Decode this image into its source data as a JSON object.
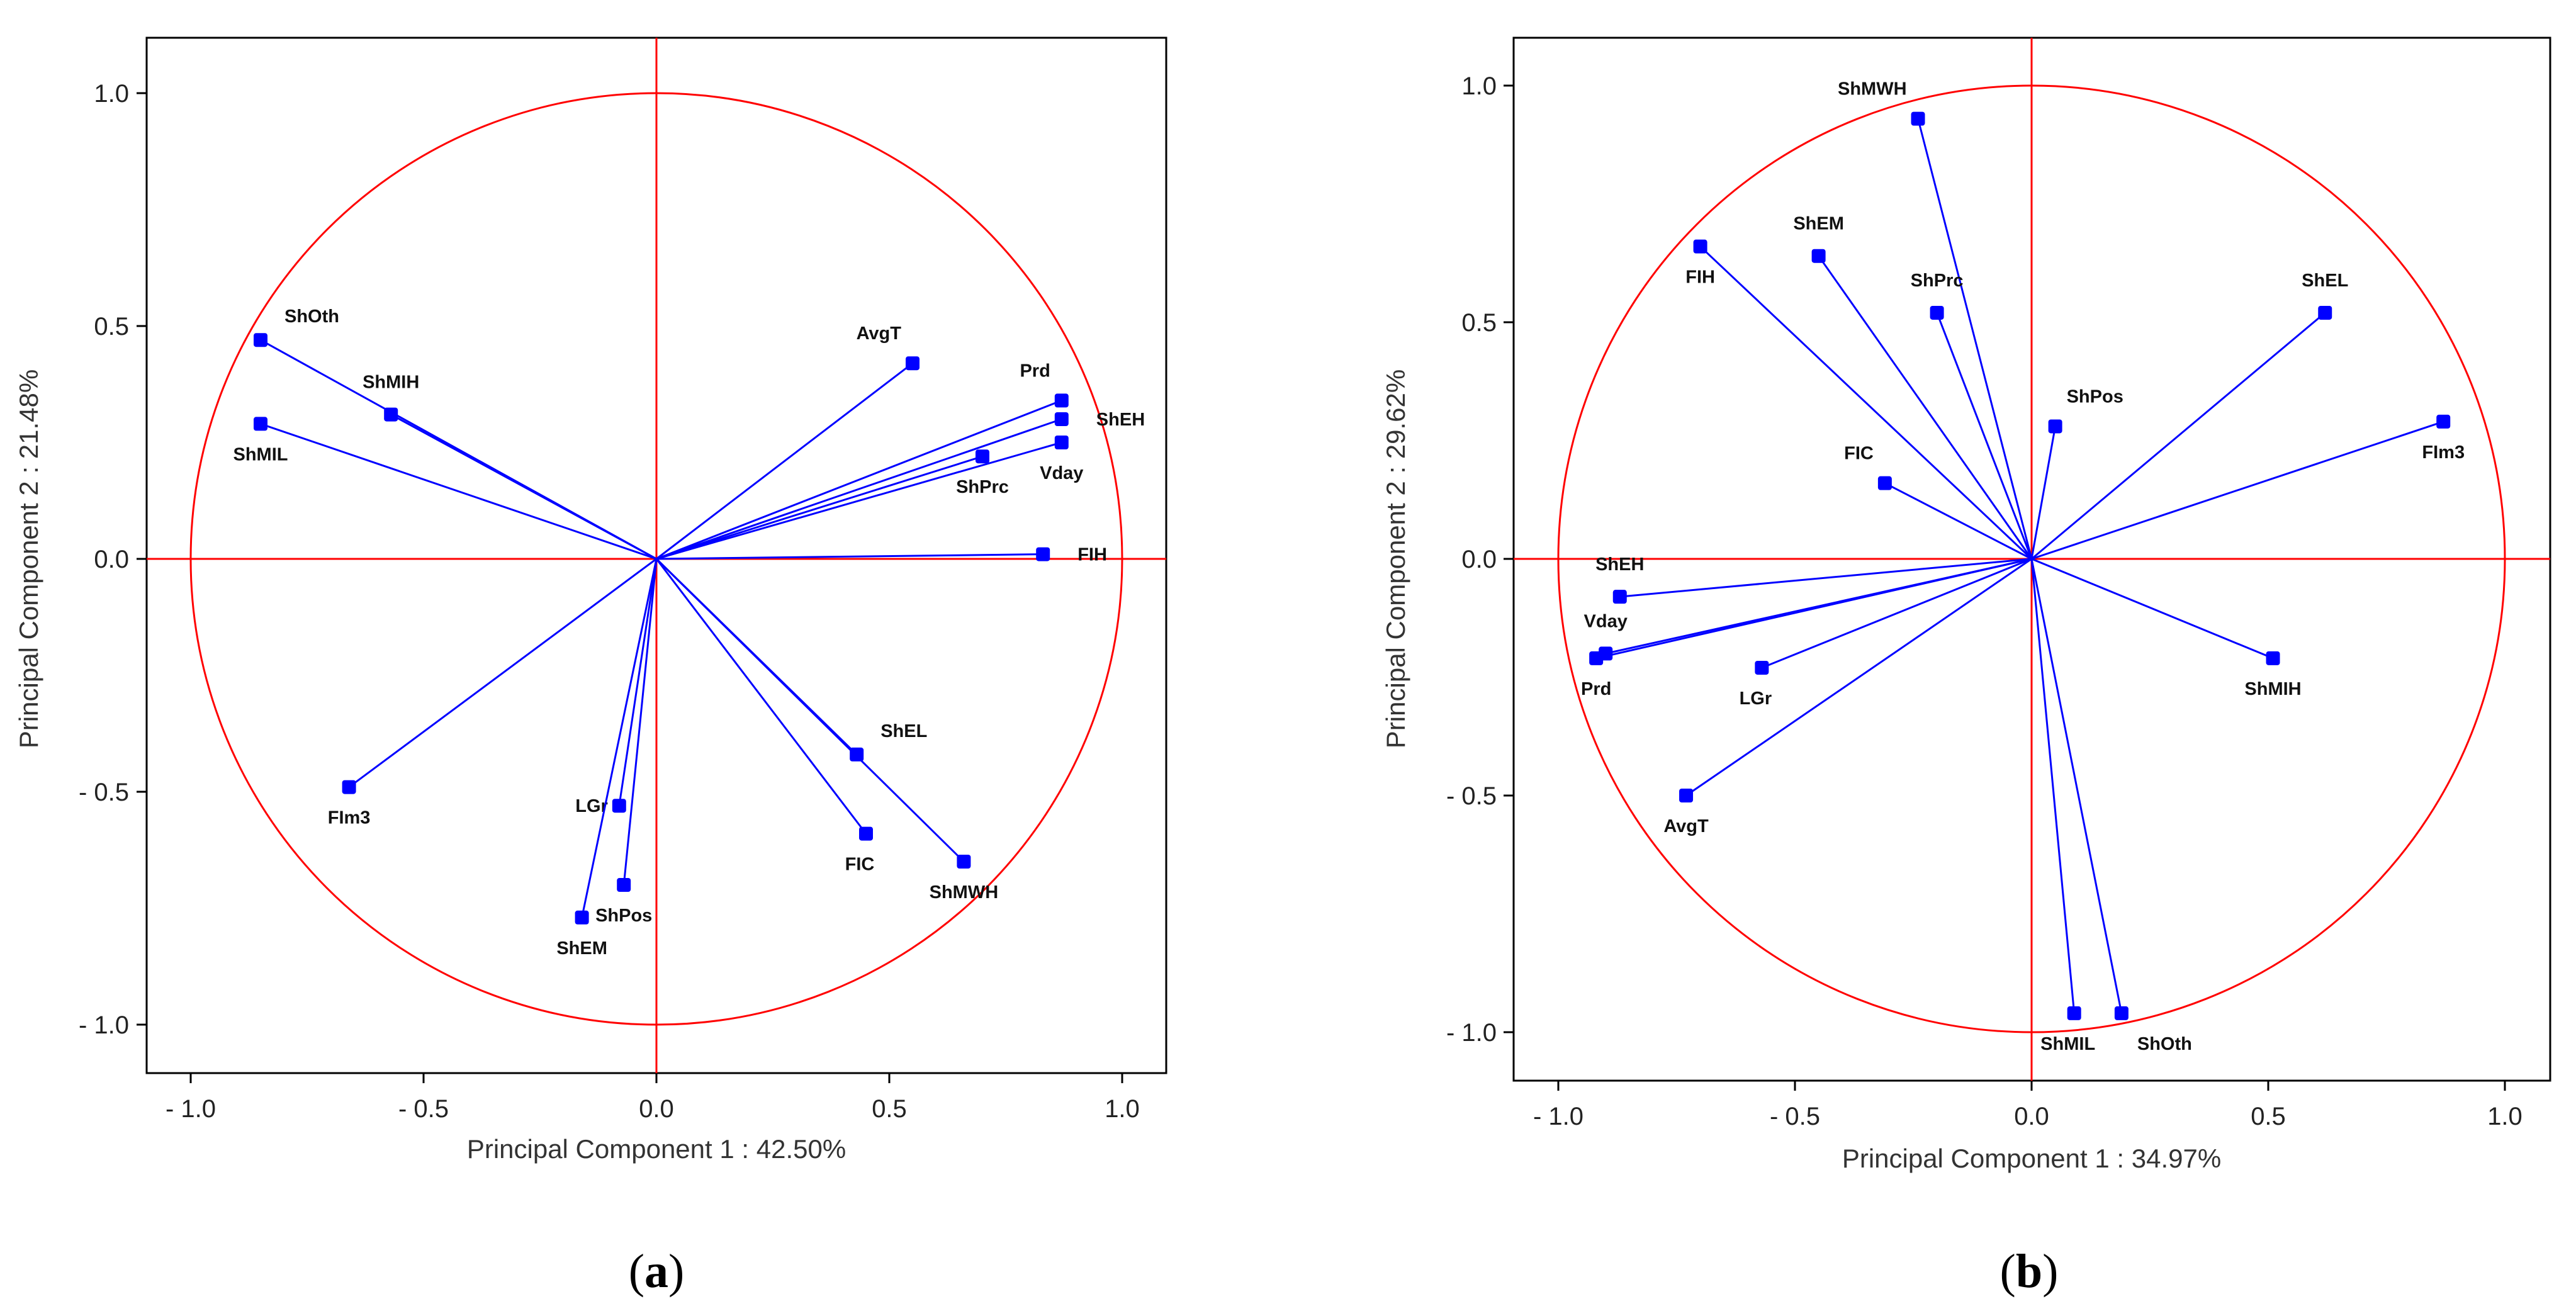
{
  "colors": {
    "frame": "#000000",
    "circle": "#ff0000",
    "vector": "#0000ff",
    "marker": "#0000ff",
    "text": "#111111"
  },
  "chart_data": [
    {
      "type": "scatter",
      "subtype": "pca-correlation-circle",
      "panel": "a",
      "caption": {
        "open": "(",
        "letter": "a",
        "close": ")"
      },
      "xlabel": "Principal Component 1 : 42.50%",
      "ylabel": "Principal Component 2 : 21.48%",
      "xlim": [
        -1.1,
        1.1
      ],
      "ylim": [
        -1.1,
        1.1
      ],
      "xticks": [
        -1.0,
        -0.5,
        0.0,
        0.5,
        1.0
      ],
      "xtick_labels": [
        "- 1.0",
        "- 0.5",
        "0.0",
        "0.5",
        "1.0"
      ],
      "yticks": [
        1.0,
        0.5,
        0.0,
        -0.5,
        -1.0
      ],
      "ytick_labels": [
        "1.0",
        "0.5",
        "0.0",
        "- 0.5",
        "- 1.0"
      ],
      "circle_radius": 1.0,
      "grid": false,
      "points": [
        {
          "name": "ShOth",
          "x": -0.85,
          "y": 0.47,
          "label_pos": "upper-right"
        },
        {
          "name": "ShMIH",
          "x": -0.57,
          "y": 0.31,
          "label_pos": "above"
        },
        {
          "name": "ShMIL",
          "x": -0.85,
          "y": 0.29,
          "label_pos": "below"
        },
        {
          "name": "AvgT",
          "x": 0.55,
          "y": 0.42,
          "label_pos": "above-left"
        },
        {
          "name": "Prd",
          "x": 0.87,
          "y": 0.34,
          "label_pos": "above-left"
        },
        {
          "name": "ShEH",
          "x": 0.87,
          "y": 0.3,
          "label_pos": "right"
        },
        {
          "name": "Vday",
          "x": 0.87,
          "y": 0.25,
          "label_pos": "below"
        },
        {
          "name": "ShPrc",
          "x": 0.7,
          "y": 0.22,
          "label_pos": "below"
        },
        {
          "name": "FIH",
          "x": 0.83,
          "y": 0.01,
          "label_pos": "right"
        },
        {
          "name": "ShEL",
          "x": 0.43,
          "y": -0.42,
          "label_pos": "upper-right"
        },
        {
          "name": "FIC",
          "x": 0.45,
          "y": -0.59,
          "label_pos": "below-left"
        },
        {
          "name": "ShMWH",
          "x": 0.66,
          "y": -0.65,
          "label_pos": "below"
        },
        {
          "name": "FIm3",
          "x": -0.66,
          "y": -0.49,
          "label_pos": "below"
        },
        {
          "name": "LGr",
          "x": -0.08,
          "y": -0.53,
          "label_pos": "left"
        },
        {
          "name": "ShPos",
          "x": -0.07,
          "y": -0.7,
          "label_pos": "below"
        },
        {
          "name": "ShEM",
          "x": -0.16,
          "y": -0.77,
          "label_pos": "below"
        }
      ]
    },
    {
      "type": "scatter",
      "subtype": "pca-correlation-circle",
      "panel": "b",
      "caption": {
        "open": "(",
        "letter": "b",
        "close": ")"
      },
      "xlabel": "Principal Component 1 : 34.97%",
      "ylabel": "Principal Component 2 : 29.62%",
      "xlim": [
        -1.1,
        1.1
      ],
      "ylim": [
        -1.1,
        1.1
      ],
      "xticks": [
        -1.0,
        -0.5,
        0.0,
        0.5,
        1.0
      ],
      "xtick_labels": [
        "- 1.0",
        "- 0.5",
        "0.0",
        "0.5",
        "1.0"
      ],
      "yticks": [
        1.0,
        0.5,
        0.0,
        -0.5,
        -1.0
      ],
      "ytick_labels": [
        "1.0",
        "0.5",
        "0.0",
        "- 0.5",
        "- 1.0"
      ],
      "circle_radius": 1.0,
      "grid": false,
      "points": [
        {
          "name": "ShMWH",
          "x": -0.24,
          "y": 0.93,
          "label_pos": "above-left"
        },
        {
          "name": "FIH",
          "x": -0.7,
          "y": 0.66,
          "label_pos": "below"
        },
        {
          "name": "ShEM",
          "x": -0.45,
          "y": 0.64,
          "label_pos": "above"
        },
        {
          "name": "ShPrc",
          "x": -0.2,
          "y": 0.52,
          "label_pos": "above"
        },
        {
          "name": "ShEL",
          "x": 0.62,
          "y": 0.52,
          "label_pos": "above"
        },
        {
          "name": "ShPos",
          "x": 0.05,
          "y": 0.28,
          "label_pos": "above-right"
        },
        {
          "name": "FIm3",
          "x": 0.87,
          "y": 0.29,
          "label_pos": "below"
        },
        {
          "name": "FIC",
          "x": -0.31,
          "y": 0.16,
          "label_pos": "above-left"
        },
        {
          "name": "ShEH",
          "x": -0.87,
          "y": -0.08,
          "label_pos": "above"
        },
        {
          "name": "Vday",
          "x": -0.9,
          "y": -0.2,
          "label_pos": "above"
        },
        {
          "name": "Prd",
          "x": -0.92,
          "y": -0.21,
          "label_pos": "below"
        },
        {
          "name": "LGr",
          "x": -0.57,
          "y": -0.23,
          "label_pos": "below-left"
        },
        {
          "name": "AvgT",
          "x": -0.73,
          "y": -0.5,
          "label_pos": "below"
        },
        {
          "name": "ShMIH",
          "x": 0.51,
          "y": -0.21,
          "label_pos": "below"
        },
        {
          "name": "ShMIL",
          "x": 0.09,
          "y": -0.96,
          "label_pos": "below-left"
        },
        {
          "name": "ShOth",
          "x": 0.19,
          "y": -0.96,
          "label_pos": "below-right"
        }
      ]
    }
  ]
}
